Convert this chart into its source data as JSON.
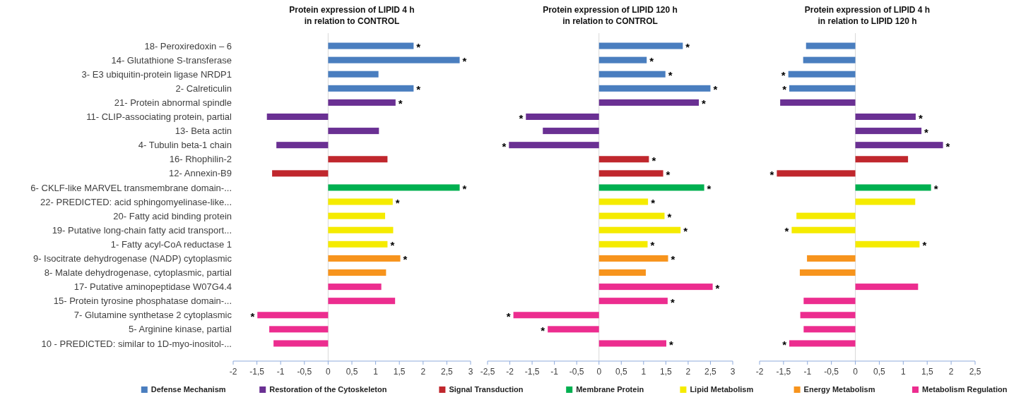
{
  "chart_data": [
    {
      "type": "bar",
      "orientation": "horizontal",
      "title": "Protein expression of LIPID 4 h\nin relation to CONTROL",
      "legend": "bottom",
      "categories": [
        "18- Peroxiredoxin – 6",
        "14- Glutathione S-transferase",
        "3- E3 ubiquitin-protein ligase NRDP1",
        "2- Calreticulin",
        "21- Protein abnormal spindle",
        "11- CLIP-associating protein, partial",
        "13- Beta actin",
        "4- Tubulin beta-1 chain",
        "16- Rhophilin-2",
        "12- Annexin-B9",
        "6- CKLF-like MARVEL transmembrane domain-...",
        "22- PREDICTED: acid sphingomyelinase-like...",
        "20- Fatty acid binding protein",
        "19- Putative long-chain fatty acid transport...",
        "1- Fatty acyl-CoA reductase 1",
        "9- Isocitrate dehydrogenase (NADP) cytoplasmic",
        "8- Malate dehydrogenase, cytoplasmic, partial",
        "17- Putative aminopeptidase W07G4.4",
        "15- Protein tyrosine phosphatase domain-...",
        "7- Glutamine synthetase 2 cytoplasmic",
        "5- Arginine kinase, partial",
        "10 - PREDICTED: similar to 1D-myo-inositol-..."
      ],
      "xlim": [
        -2,
        3
      ],
      "xticks": [
        -2,
        {
          "value": -1.5,
          "label": "-1,5"
        },
        -1,
        {
          "value": -0.5,
          "label": "-0,5"
        },
        0,
        {
          "value": 0.5,
          "label": "0,5"
        },
        1,
        {
          "value": 1.5,
          "label": "1,5"
        },
        2,
        {
          "value": 2.5,
          "label": "2,5"
        },
        3
      ],
      "series": [
        {
          "name": "Defense Mechanism",
          "color": "#4a7ebf",
          "values": [
            1.8,
            2.77,
            1.06,
            1.8,
            null,
            null,
            null,
            null,
            null,
            null,
            null,
            null,
            null,
            null,
            null,
            null,
            null,
            null,
            null,
            null,
            null,
            null
          ],
          "value_labels": [
            "*",
            "*",
            null,
            "*",
            null,
            null,
            null,
            null,
            null,
            null,
            null,
            null,
            null,
            null,
            null,
            null,
            null,
            null,
            null,
            null,
            null,
            null
          ]
        },
        {
          "name": "Restoration of the Cytoskeleton",
          "color": "#6a3093",
          "values": [
            null,
            null,
            null,
            null,
            1.42,
            -1.29,
            1.07,
            -1.09,
            null,
            null,
            null,
            null,
            null,
            null,
            null,
            null,
            null,
            null,
            null,
            null,
            null,
            null
          ],
          "value_labels": [
            null,
            null,
            null,
            null,
            "*",
            null,
            null,
            null,
            null,
            null,
            null,
            null,
            null,
            null,
            null,
            null,
            null,
            null,
            null,
            null,
            null,
            null
          ]
        },
        {
          "name": "Signal Transduction",
          "color": "#c0272d",
          "values": [
            null,
            null,
            null,
            null,
            null,
            null,
            null,
            null,
            1.25,
            -1.18,
            null,
            null,
            null,
            null,
            null,
            null,
            null,
            null,
            null,
            null,
            null,
            null
          ],
          "value_labels": [
            null,
            null,
            null,
            null,
            null,
            null,
            null,
            null,
            null,
            null,
            null,
            null,
            null,
            null,
            null,
            null,
            null,
            null,
            null,
            null,
            null,
            null
          ]
        },
        {
          "name": "Membrane Protein",
          "color": "#00b050",
          "values": [
            null,
            null,
            null,
            null,
            null,
            null,
            null,
            null,
            null,
            null,
            2.77,
            null,
            null,
            null,
            null,
            null,
            null,
            null,
            null,
            null,
            null,
            null
          ],
          "value_labels": [
            null,
            null,
            null,
            null,
            null,
            null,
            null,
            null,
            null,
            null,
            "*",
            null,
            null,
            null,
            null,
            null,
            null,
            null,
            null,
            null,
            null,
            null
          ]
        },
        {
          "name": "Lipid Metabolism",
          "color": "#f5eb00",
          "values": [
            null,
            null,
            null,
            null,
            null,
            null,
            null,
            null,
            null,
            null,
            null,
            1.36,
            1.2,
            1.37,
            1.25,
            null,
            null,
            null,
            null,
            null,
            null,
            null
          ],
          "value_labels": [
            null,
            null,
            null,
            null,
            null,
            null,
            null,
            null,
            null,
            null,
            null,
            "*",
            null,
            null,
            "*",
            null,
            null,
            null,
            null,
            null,
            null,
            null
          ]
        },
        {
          "name": "Energy Metabolism",
          "color": "#f7941d",
          "values": [
            null,
            null,
            null,
            null,
            null,
            null,
            null,
            null,
            null,
            null,
            null,
            null,
            null,
            null,
            null,
            1.52,
            1.22,
            null,
            null,
            null,
            null,
            null
          ],
          "value_labels": [
            null,
            null,
            null,
            null,
            null,
            null,
            null,
            null,
            null,
            null,
            null,
            null,
            null,
            null,
            null,
            "*",
            null,
            null,
            null,
            null,
            null,
            null
          ]
        },
        {
          "name": "Metabolism Regulation",
          "color": "#ec2d8f",
          "values": [
            null,
            null,
            null,
            null,
            null,
            null,
            null,
            null,
            null,
            null,
            null,
            null,
            null,
            null,
            null,
            null,
            null,
            1.12,
            1.41,
            -1.49,
            -1.24,
            -1.15
          ],
          "value_labels": [
            null,
            null,
            null,
            null,
            null,
            null,
            null,
            null,
            null,
            null,
            null,
            null,
            null,
            null,
            null,
            null,
            null,
            null,
            null,
            "*",
            null,
            null
          ]
        }
      ]
    },
    {
      "type": "bar",
      "orientation": "horizontal",
      "title": "Protein expression of LIPID 120 h\nin relation to CONTROL",
      "tick_labels": "x",
      "xlim": [
        -2.5,
        3
      ],
      "xticks": [
        {
          "value": -2.5,
          "label": "-2,5"
        },
        -2,
        {
          "value": -1.5,
          "label": "-1,5"
        },
        -1,
        {
          "value": -0.5,
          "label": "-0,5"
        },
        0,
        {
          "value": 0.5,
          "label": "0,5"
        },
        1,
        {
          "value": 1.5,
          "label": "1,5"
        },
        2,
        {
          "value": 2.5,
          "label": "2,5"
        },
        3
      ],
      "series": [
        {
          "color": "#4a7ebf",
          "values": [
            1.88,
            1.07,
            1.49,
            2.5,
            null,
            null,
            null,
            null,
            null,
            null,
            null,
            null,
            null,
            null,
            null,
            null,
            null,
            null,
            null,
            null,
            null,
            null
          ],
          "value_labels": [
            "*",
            "*",
            "*",
            "*",
            null,
            null,
            null,
            null,
            null,
            null,
            null,
            null,
            null,
            null,
            null,
            null,
            null,
            null,
            null,
            null,
            null,
            null
          ]
        },
        {
          "color": "#6a3093",
          "values": [
            null,
            null,
            null,
            null,
            2.24,
            -1.64,
            -1.26,
            -2.02,
            null,
            null,
            null,
            null,
            null,
            null,
            null,
            null,
            null,
            null,
            null,
            null,
            null,
            null
          ],
          "value_labels": [
            null,
            null,
            null,
            null,
            "*",
            "*",
            null,
            "*",
            null,
            null,
            null,
            null,
            null,
            null,
            null,
            null,
            null,
            null,
            null,
            null,
            null,
            null
          ]
        },
        {
          "color": "#c0272d",
          "values": [
            null,
            null,
            null,
            null,
            null,
            null,
            null,
            null,
            1.12,
            1.44,
            null,
            null,
            null,
            null,
            null,
            null,
            null,
            null,
            null,
            null,
            null,
            null
          ],
          "value_labels": [
            null,
            null,
            null,
            null,
            null,
            null,
            null,
            null,
            "*",
            "*",
            null,
            null,
            null,
            null,
            null,
            null,
            null,
            null,
            null,
            null,
            null,
            null
          ]
        },
        {
          "color": "#00b050",
          "values": [
            null,
            null,
            null,
            null,
            null,
            null,
            null,
            null,
            null,
            null,
            2.36,
            null,
            null,
            null,
            null,
            null,
            null,
            null,
            null,
            null,
            null,
            null
          ],
          "value_labels": [
            null,
            null,
            null,
            null,
            null,
            null,
            null,
            null,
            null,
            null,
            "*",
            null,
            null,
            null,
            null,
            null,
            null,
            null,
            null,
            null,
            null,
            null
          ]
        },
        {
          "color": "#f5eb00",
          "values": [
            null,
            null,
            null,
            null,
            null,
            null,
            null,
            null,
            null,
            null,
            null,
            1.1,
            1.47,
            1.83,
            1.09,
            null,
            null,
            null,
            null,
            null,
            null,
            null
          ],
          "value_labels": [
            null,
            null,
            null,
            null,
            null,
            null,
            null,
            null,
            null,
            null,
            null,
            "*",
            "*",
            "*",
            "*",
            null,
            null,
            null,
            null,
            null,
            null,
            null
          ]
        },
        {
          "color": "#f7941d",
          "values": [
            null,
            null,
            null,
            null,
            null,
            null,
            null,
            null,
            null,
            null,
            null,
            null,
            null,
            null,
            null,
            1.55,
            1.05,
            null,
            null,
            null,
            null,
            null
          ],
          "value_labels": [
            null,
            null,
            null,
            null,
            null,
            null,
            null,
            null,
            null,
            null,
            null,
            null,
            null,
            null,
            null,
            "*",
            null,
            null,
            null,
            null,
            null,
            null
          ]
        },
        {
          "color": "#ec2d8f",
          "values": [
            null,
            null,
            null,
            null,
            null,
            null,
            null,
            null,
            null,
            null,
            null,
            null,
            null,
            null,
            null,
            null,
            null,
            2.55,
            1.54,
            -1.92,
            -1.15,
            1.51
          ],
          "value_labels": [
            null,
            null,
            null,
            null,
            null,
            null,
            null,
            null,
            null,
            null,
            null,
            null,
            null,
            null,
            null,
            null,
            null,
            "*",
            "*",
            "*",
            "*",
            "*"
          ]
        }
      ]
    },
    {
      "type": "bar",
      "orientation": "horizontal",
      "title": "Protein expression of LIPID 4 h\nin relation to LIPID 120 h",
      "tick_labels": "x",
      "xlim": [
        -2,
        2.5
      ],
      "xticks": [
        -2,
        {
          "value": -1.5,
          "label": "-1,5"
        },
        -1,
        {
          "value": -0.5,
          "label": "-0,5"
        },
        0,
        {
          "value": 0.5,
          "label": "0,5"
        },
        1,
        {
          "value": 1.5,
          "label": "1,5"
        },
        2,
        {
          "value": 2.5,
          "label": "2,5"
        }
      ],
      "series": [
        {
          "color": "#4a7ebf",
          "values": [
            -1.03,
            -1.09,
            -1.4,
            -1.38,
            null,
            null,
            null,
            null,
            null,
            null,
            null,
            null,
            null,
            null,
            null,
            null,
            null,
            null,
            null,
            null,
            null,
            null
          ],
          "value_labels": [
            null,
            null,
            "*",
            "*",
            null,
            null,
            null,
            null,
            null,
            null,
            null,
            null,
            null,
            null,
            null,
            null,
            null,
            null,
            null,
            null,
            null,
            null
          ]
        },
        {
          "color": "#6a3093",
          "values": [
            null,
            null,
            null,
            null,
            -1.57,
            1.26,
            1.38,
            1.83,
            null,
            null,
            null,
            null,
            null,
            null,
            null,
            null,
            null,
            null,
            null,
            null,
            null,
            null
          ],
          "value_labels": [
            null,
            null,
            null,
            null,
            null,
            "*",
            "*",
            "*",
            null,
            null,
            null,
            null,
            null,
            null,
            null,
            null,
            null,
            null,
            null,
            null,
            null,
            null
          ]
        },
        {
          "color": "#c0272d",
          "values": [
            null,
            null,
            null,
            null,
            null,
            null,
            null,
            null,
            1.1,
            -1.64,
            null,
            null,
            null,
            null,
            null,
            null,
            null,
            null,
            null,
            null,
            null,
            null
          ],
          "value_labels": [
            null,
            null,
            null,
            null,
            null,
            null,
            null,
            null,
            null,
            "*",
            null,
            null,
            null,
            null,
            null,
            null,
            null,
            null,
            null,
            null,
            null,
            null
          ]
        },
        {
          "color": "#00b050",
          "values": [
            null,
            null,
            null,
            null,
            null,
            null,
            null,
            null,
            null,
            null,
            1.58,
            null,
            null,
            null,
            null,
            null,
            null,
            null,
            null,
            null,
            null,
            null
          ],
          "value_labels": [
            null,
            null,
            null,
            null,
            null,
            null,
            null,
            null,
            null,
            null,
            "*",
            null,
            null,
            null,
            null,
            null,
            null,
            null,
            null,
            null,
            null,
            null
          ]
        },
        {
          "color": "#f5eb00",
          "values": [
            null,
            null,
            null,
            null,
            null,
            null,
            null,
            null,
            null,
            null,
            null,
            1.25,
            -1.23,
            -1.33,
            1.34,
            null,
            null,
            null,
            null,
            null,
            null,
            null
          ],
          "value_labels": [
            null,
            null,
            null,
            null,
            null,
            null,
            null,
            null,
            null,
            null,
            null,
            null,
            null,
            "*",
            "*",
            null,
            null,
            null,
            null,
            null,
            null,
            null
          ]
        },
        {
          "color": "#f7941d",
          "values": [
            null,
            null,
            null,
            null,
            null,
            null,
            null,
            null,
            null,
            null,
            null,
            null,
            null,
            null,
            null,
            -1.01,
            -1.16,
            null,
            null,
            null,
            null,
            null
          ],
          "value_labels": [
            null,
            null,
            null,
            null,
            null,
            null,
            null,
            null,
            null,
            null,
            null,
            null,
            null,
            null,
            null,
            null,
            null,
            null,
            null,
            null,
            null,
            null
          ]
        },
        {
          "color": "#ec2d8f",
          "values": [
            null,
            null,
            null,
            null,
            null,
            null,
            null,
            null,
            null,
            null,
            null,
            null,
            null,
            null,
            null,
            null,
            null,
            1.31,
            -1.08,
            -1.15,
            -1.08,
            -1.38
          ],
          "value_labels": [
            null,
            null,
            null,
            null,
            null,
            null,
            null,
            null,
            null,
            null,
            null,
            null,
            null,
            null,
            null,
            null,
            null,
            null,
            null,
            null,
            null,
            "*"
          ]
        }
      ]
    }
  ]
}
